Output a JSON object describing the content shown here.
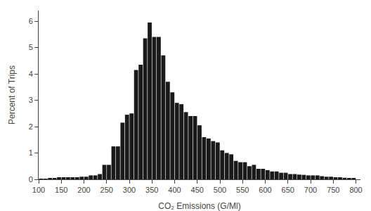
{
  "chart_data": {
    "type": "bar",
    "x": [
      105,
      115,
      125,
      135,
      145,
      155,
      165,
      175,
      185,
      195,
      205,
      215,
      225,
      235,
      245,
      255,
      265,
      275,
      285,
      295,
      305,
      315,
      325,
      335,
      345,
      355,
      365,
      375,
      385,
      395,
      405,
      415,
      425,
      435,
      445,
      455,
      465,
      475,
      485,
      495,
      505,
      515,
      525,
      535,
      545,
      555,
      565,
      575,
      585,
      595,
      605,
      615,
      625,
      635,
      645,
      655,
      665,
      675,
      685,
      695,
      705,
      715,
      725,
      735,
      745,
      755,
      765,
      775,
      785,
      795
    ],
    "values": [
      0.02,
      0.02,
      0.05,
      0.05,
      0.08,
      0.08,
      0.08,
      0.08,
      0.08,
      0.1,
      0.1,
      0.15,
      0.15,
      0.2,
      0.55,
      0.55,
      1.25,
      1.25,
      2.15,
      2.45,
      2.5,
      4.15,
      4.35,
      5.35,
      5.95,
      5.4,
      5.4,
      4.7,
      3.7,
      3.3,
      2.9,
      2.85,
      2.55,
      2.4,
      2.4,
      2.05,
      1.6,
      1.55,
      1.45,
      1.4,
      1.1,
      1.0,
      0.95,
      0.7,
      0.65,
      0.65,
      0.5,
      0.55,
      0.4,
      0.4,
      0.35,
      0.3,
      0.3,
      0.25,
      0.25,
      0.2,
      0.2,
      0.18,
      0.17,
      0.15,
      0.15,
      0.15,
      0.12,
      0.1,
      0.1,
      0.08,
      0.08,
      0.06,
      0.05,
      0.05
    ],
    "color": "#1a1a1a",
    "xlabel": "CO₂ Emissions (G/Ml)",
    "ylabel": "Percent of Trips",
    "xlim": [
      100,
      810
    ],
    "ylim": [
      0,
      6.4
    ],
    "xticks": [
      100,
      150,
      200,
      250,
      300,
      350,
      400,
      450,
      500,
      550,
      600,
      650,
      700,
      750,
      800
    ],
    "yticks": [
      0,
      1,
      2,
      3,
      4,
      5,
      6
    ],
    "grid": false
  }
}
